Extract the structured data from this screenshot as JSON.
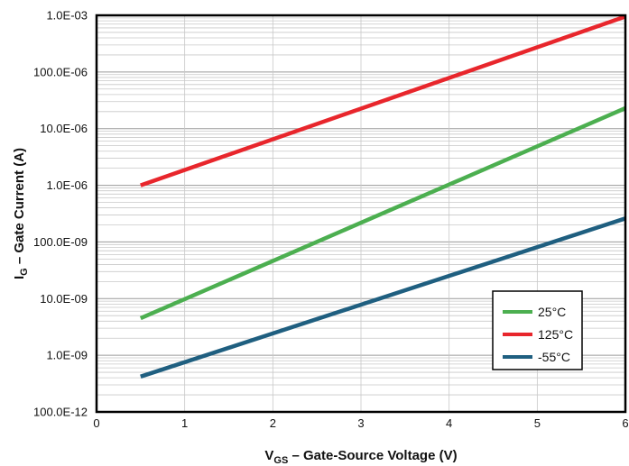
{
  "chart_data": {
    "type": "line",
    "xlabel": {
      "main": "V",
      "sub": "GS",
      "rest": " – Gate-Source Voltage (V)"
    },
    "ylabel": {
      "main": "I",
      "sub": "G",
      "rest": " – Gate Current (A)"
    },
    "xlim": [
      0,
      6
    ],
    "ylim": [
      1e-10,
      0.001
    ],
    "yscale": "log",
    "grid": true,
    "legend_position": "lower-right",
    "x_ticks": [
      "0",
      "1",
      "2",
      "3",
      "4",
      "5",
      "6"
    ],
    "y_ticks": [
      "100.0E-12",
      "1.0E-09",
      "10.0E-09",
      "100.0E-09",
      "1.0E-06",
      "10.0E-06",
      "100.0E-06",
      "1.0E-03"
    ],
    "series": [
      {
        "name": "25°C",
        "color": "#4caf50",
        "x": [
          0.5,
          6
        ],
        "y": [
          4.5e-09,
          2.3e-05
        ]
      },
      {
        "name": "125°C",
        "color": "#e8262c",
        "x": [
          0.5,
          6
        ],
        "y": [
          1e-06,
          0.00095
        ]
      },
      {
        "name": "-55°C",
        "color": "#1f5f80",
        "x": [
          0.5,
          6
        ],
        "y": [
          4.2e-10,
          2.6e-07
        ]
      }
    ]
  }
}
